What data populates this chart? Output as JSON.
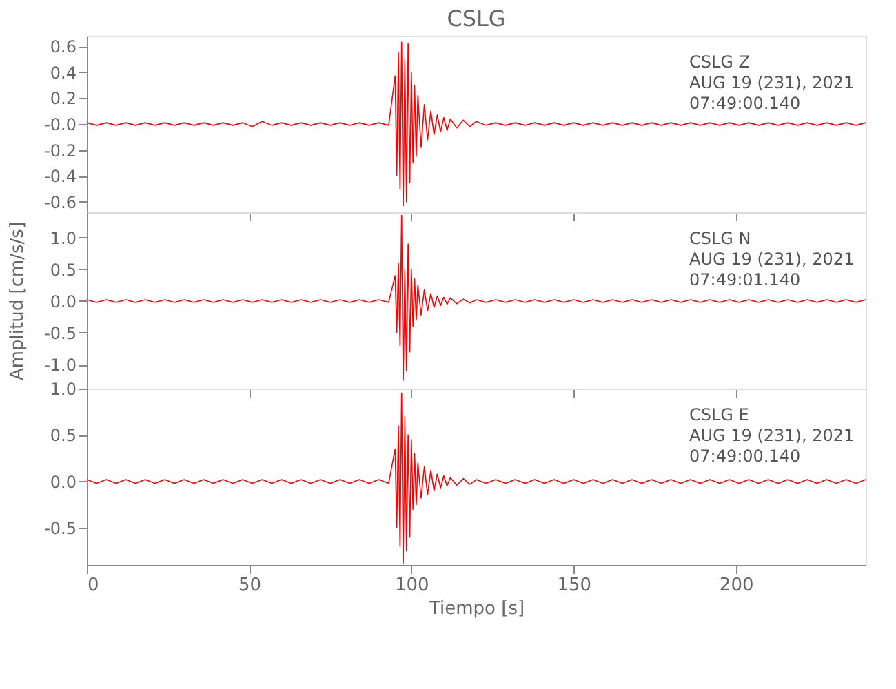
{
  "chart_data": [
    {
      "type": "line",
      "title": "CSLG",
      "annotations": [
        "CSLG Z",
        "AUG 19 (231), 2021",
        "07:49:00.140"
      ],
      "tick_labels": "y",
      "grid": false,
      "xlim": [
        0,
        240
      ],
      "xticks": [
        {
          "value": 0,
          "label": null
        },
        {
          "value": 50,
          "label": null
        },
        {
          "value": 100,
          "label": null
        },
        {
          "value": 150,
          "label": null
        },
        {
          "value": 200,
          "label": null
        }
      ],
      "ylim": [
        -0.68,
        0.68
      ],
      "yticks": [
        {
          "value": -0.6,
          "label": "-0.6"
        },
        {
          "value": -0.4,
          "label": "-0.4"
        },
        {
          "value": -0.2,
          "label": "-0.2"
        },
        {
          "value": 0,
          "label": "-0.0"
        },
        {
          "value": 0.2,
          "label": "0.2"
        },
        {
          "value": 0.4,
          "label": "0.4"
        },
        {
          "value": 0.6,
          "label": "0.6"
        }
      ],
      "x": [
        0,
        3,
        6,
        9,
        12,
        15,
        18,
        21,
        24,
        27,
        30,
        33,
        36,
        39,
        42,
        45,
        48,
        51,
        54,
        57,
        60,
        63,
        66,
        69,
        72,
        75,
        78,
        81,
        84,
        87,
        90,
        93,
        95,
        95.5,
        96,
        96.5,
        97,
        97.5,
        98,
        98.5,
        99,
        99.5,
        100,
        100.5,
        101,
        101.5,
        102,
        103,
        104,
        105,
        106,
        107,
        108,
        109,
        110,
        111,
        112,
        114,
        116,
        118,
        120,
        123,
        126,
        129,
        132,
        135,
        138,
        141,
        144,
        147,
        150,
        153,
        156,
        159,
        162,
        165,
        168,
        171,
        174,
        177,
        180,
        183,
        186,
        189,
        192,
        195,
        198,
        201,
        204,
        207,
        210,
        213,
        216,
        219,
        222,
        225,
        228,
        231,
        234,
        237,
        240
      ],
      "series": [
        {
          "color": "#ff0000",
          "values": [
            0.01,
            -0.01,
            0.01,
            -0.01,
            0.01,
            -0.01,
            0.01,
            -0.01,
            0.01,
            -0.01,
            0.01,
            -0.01,
            0.01,
            -0.01,
            0.01,
            -0.01,
            0.01,
            -0.02,
            0.02,
            -0.01,
            0.01,
            -0.01,
            0.01,
            -0.01,
            0.01,
            -0.01,
            0.01,
            -0.01,
            0.01,
            -0.01,
            0.01,
            -0.01,
            0.37,
            -0.4,
            0.55,
            -0.5,
            0.63,
            -0.63,
            0.5,
            -0.6,
            0.62,
            -0.45,
            0.4,
            -0.3,
            0.3,
            -0.25,
            0.22,
            -0.18,
            0.15,
            -0.12,
            0.1,
            -0.08,
            0.07,
            -0.06,
            0.05,
            -0.05,
            0.04,
            -0.03,
            0.03,
            -0.02,
            0.02,
            -0.01,
            0.01,
            -0.01,
            0.01,
            -0.01,
            0.01,
            -0.01,
            0.01,
            -0.01,
            0.01,
            -0.01,
            0.01,
            -0.01,
            0.01,
            -0.01,
            0.01,
            -0.01,
            0.01,
            -0.01,
            0.01,
            -0.01,
            0.01,
            -0.01,
            0.01,
            -0.01,
            0.01,
            -0.01,
            0.01,
            -0.01,
            0.01,
            -0.01,
            0.01,
            -0.01,
            0.01,
            -0.01,
            0.01,
            -0.01,
            0.01,
            -0.01,
            0.01
          ]
        }
      ]
    },
    {
      "type": "line",
      "ylabel": "Amplitud [cm/s/s]",
      "annotations": [
        "CSLG N",
        "AUG 19 (231), 2021",
        "07:49:01.140"
      ],
      "tick_labels": "y",
      "grid": false,
      "xlim": [
        0,
        240
      ],
      "xticks": [
        {
          "value": 0,
          "label": null
        },
        {
          "value": 50,
          "label": null
        },
        {
          "value": 100,
          "label": null
        },
        {
          "value": 150,
          "label": null
        },
        {
          "value": 200,
          "label": null
        }
      ],
      "ylim": [
        -1.38,
        1.4
      ],
      "yticks": [
        {
          "value": -1,
          "label": "-1.0"
        },
        {
          "value": -0.5,
          "label": "-0.5"
        },
        {
          "value": 0,
          "label": "0.0"
        },
        {
          "value": 0.5,
          "label": "0.5"
        },
        {
          "value": 1,
          "label": "1.0"
        }
      ],
      "x": [
        0,
        3,
        6,
        9,
        12,
        15,
        18,
        21,
        24,
        27,
        30,
        33,
        36,
        39,
        42,
        45,
        48,
        51,
        54,
        57,
        60,
        63,
        66,
        69,
        72,
        75,
        78,
        81,
        84,
        87,
        90,
        93,
        95,
        95.5,
        96,
        96.5,
        97,
        97.5,
        98,
        98.5,
        99,
        99.5,
        100,
        100.5,
        101,
        101.5,
        102,
        103,
        104,
        105,
        106,
        107,
        108,
        109,
        110,
        111,
        112,
        114,
        116,
        118,
        120,
        123,
        126,
        129,
        132,
        135,
        138,
        141,
        144,
        147,
        150,
        153,
        156,
        159,
        162,
        165,
        168,
        171,
        174,
        177,
        180,
        183,
        186,
        189,
        192,
        195,
        198,
        201,
        204,
        207,
        210,
        213,
        216,
        219,
        222,
        225,
        228,
        231,
        234,
        237,
        240
      ],
      "series": [
        {
          "color": "#ff0000",
          "values": [
            0.02,
            -0.02,
            0.02,
            -0.02,
            0.02,
            -0.02,
            0.02,
            -0.02,
            0.02,
            -0.02,
            0.02,
            -0.02,
            0.02,
            -0.02,
            0.02,
            -0.02,
            0.02,
            -0.02,
            0.02,
            -0.02,
            0.02,
            -0.02,
            0.02,
            -0.02,
            0.02,
            -0.02,
            0.02,
            -0.02,
            0.02,
            -0.02,
            0.02,
            -0.02,
            0.4,
            -0.5,
            0.6,
            -0.7,
            1.35,
            -1.25,
            0.5,
            -1.1,
            0.9,
            -0.8,
            0.5,
            -0.4,
            0.35,
            -0.3,
            0.25,
            -0.22,
            0.18,
            -0.15,
            0.12,
            -0.1,
            0.08,
            -0.07,
            0.06,
            -0.05,
            0.05,
            -0.04,
            0.03,
            -0.03,
            0.02,
            -0.02,
            0.02,
            -0.02,
            0.02,
            -0.02,
            0.02,
            -0.02,
            0.02,
            -0.02,
            0.02,
            -0.02,
            0.02,
            -0.02,
            0.02,
            -0.02,
            0.02,
            -0.02,
            0.02,
            -0.02,
            0.02,
            -0.02,
            0.02,
            -0.02,
            0.02,
            -0.02,
            0.02,
            -0.02,
            0.02,
            -0.02,
            0.02,
            -0.02,
            0.02,
            -0.02,
            0.02,
            -0.02,
            0.02,
            -0.02,
            0.02,
            -0.02,
            0.02
          ]
        }
      ]
    },
    {
      "type": "line",
      "xlabel": "Tiempo [s]",
      "annotations": [
        "CSLG E",
        "AUG 19 (231), 2021",
        "07:49:00.140"
      ],
      "grid": false,
      "xlim": [
        0,
        240
      ],
      "xticks": [
        0,
        50,
        100,
        150,
        200
      ],
      "ylim": [
        -0.9,
        1.0
      ],
      "yticks": [
        {
          "value": -0.5,
          "label": "-0.5"
        },
        {
          "value": 0,
          "label": "0.0"
        },
        {
          "value": 0.5,
          "label": "0.5"
        },
        {
          "value": 1,
          "label": "1.0"
        }
      ],
      "x": [
        0,
        3,
        6,
        9,
        12,
        15,
        18,
        21,
        24,
        27,
        30,
        33,
        36,
        39,
        42,
        45,
        48,
        51,
        54,
        57,
        60,
        63,
        66,
        69,
        72,
        75,
        78,
        81,
        84,
        87,
        90,
        93,
        95,
        95.5,
        96,
        96.5,
        97,
        97.5,
        98,
        98.5,
        99,
        99.5,
        100,
        100.5,
        101,
        101.5,
        102,
        103,
        104,
        105,
        106,
        107,
        108,
        109,
        110,
        111,
        112,
        114,
        116,
        118,
        120,
        123,
        126,
        129,
        132,
        135,
        138,
        141,
        144,
        147,
        150,
        153,
        156,
        159,
        162,
        165,
        168,
        171,
        174,
        177,
        180,
        183,
        186,
        189,
        192,
        195,
        198,
        201,
        204,
        207,
        210,
        213,
        216,
        219,
        222,
        225,
        228,
        231,
        234,
        237,
        240
      ],
      "series": [
        {
          "color": "#ff0000",
          "values": [
            0.02,
            -0.02,
            0.02,
            -0.02,
            0.02,
            -0.02,
            0.02,
            -0.02,
            0.02,
            -0.02,
            0.02,
            -0.02,
            0.02,
            -0.02,
            0.02,
            -0.02,
            0.02,
            -0.02,
            0.02,
            -0.02,
            0.02,
            -0.02,
            0.02,
            -0.02,
            0.02,
            -0.02,
            0.02,
            -0.02,
            0.02,
            -0.02,
            0.02,
            -0.02,
            0.35,
            -0.5,
            0.6,
            -0.7,
            0.95,
            -0.88,
            0.7,
            -0.75,
            0.5,
            -0.6,
            0.45,
            -0.3,
            0.3,
            -0.25,
            0.2,
            -0.18,
            0.16,
            -0.14,
            0.12,
            -0.1,
            0.08,
            -0.07,
            0.06,
            -0.05,
            0.04,
            -0.04,
            0.03,
            -0.03,
            0.02,
            -0.02,
            0.02,
            -0.02,
            0.02,
            -0.02,
            0.02,
            -0.02,
            0.02,
            -0.02,
            0.02,
            -0.02,
            0.02,
            -0.02,
            0.02,
            -0.02,
            0.02,
            -0.02,
            0.02,
            -0.02,
            0.02,
            -0.02,
            0.02,
            -0.02,
            0.02,
            -0.02,
            0.02,
            -0.02,
            0.02,
            -0.02,
            0.02,
            -0.02,
            0.02,
            -0.02,
            0.02,
            -0.02,
            0.02,
            -0.02,
            0.02,
            -0.02,
            0.02
          ]
        }
      ]
    }
  ]
}
